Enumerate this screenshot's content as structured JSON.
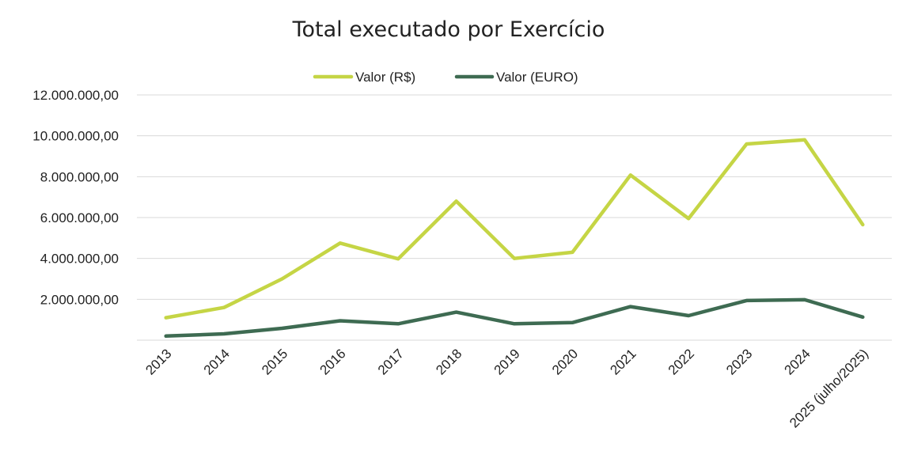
{
  "chart_data": {
    "type": "line",
    "title": "Total executado por Exercício",
    "xlabel": "",
    "ylabel": "",
    "categories": [
      "2013",
      "2014",
      "2015",
      "2016",
      "2017",
      "2018",
      "2019",
      "2020",
      "2021",
      "2022",
      "2023",
      "2024",
      "2025 (julho/2025)"
    ],
    "y_tick_labels": [
      "2.000.000,00",
      "4.000.000,00",
      "6.000.000,00",
      "8.000.000,00",
      "10.000.000,00",
      "12.000.000,00"
    ],
    "y_ticks": [
      2000000,
      4000000,
      6000000,
      8000000,
      10000000,
      12000000
    ],
    "ylim": [
      0,
      12000000
    ],
    "legend_position": "top-center",
    "grid": true,
    "series": [
      {
        "name": "Valor (R$)",
        "color": "#c5d545",
        "values": [
          1100000,
          1600000,
          3000000,
          4750000,
          3980000,
          6800000,
          4000000,
          4300000,
          8080000,
          5950000,
          9600000,
          9800000,
          5650000
        ]
      },
      {
        "name": "Valor (EURO)",
        "color": "#3e6b52",
        "values": [
          200000,
          310000,
          580000,
          950000,
          800000,
          1370000,
          800000,
          860000,
          1640000,
          1200000,
          1940000,
          1980000,
          1130000
        ]
      }
    ]
  }
}
